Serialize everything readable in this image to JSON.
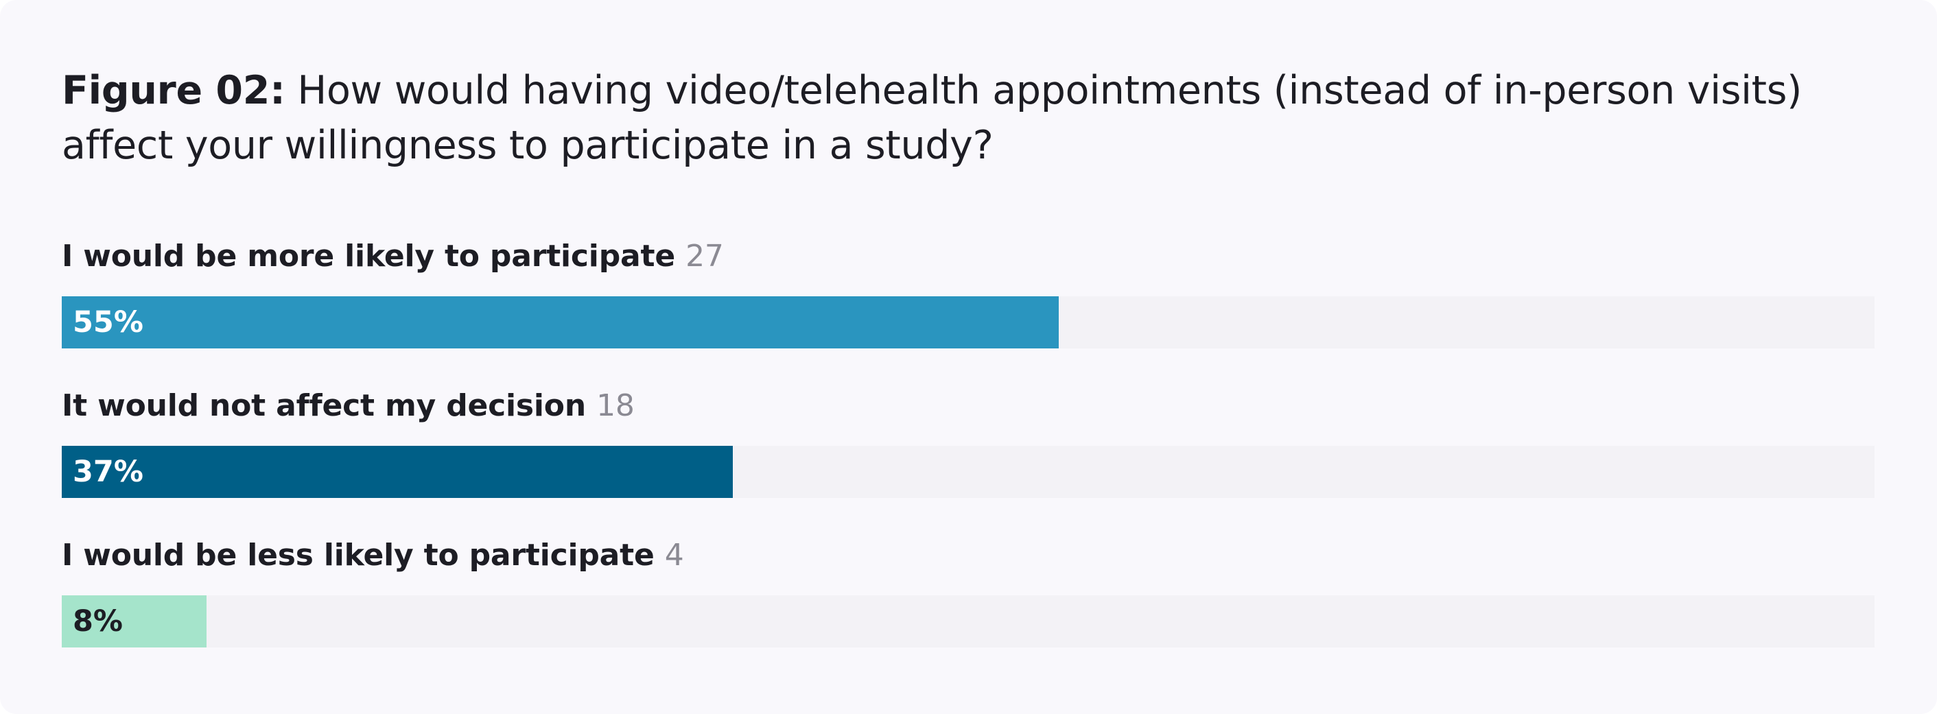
{
  "figure": {
    "label": "Figure 02:",
    "question": "How would having video/telehealth appointments (instead of in-person visits) affect your willingness to participate in a study?"
  },
  "chart_data": {
    "type": "bar",
    "orientation": "horizontal",
    "title": "Figure 02: How would having video/telehealth appointments (instead of in-person visits) affect your willingness to participate in a study?",
    "categories": [
      "I would be more likely to participate",
      "It would not affect my decision",
      "I would be less likely to participate"
    ],
    "counts": [
      27,
      18,
      4
    ],
    "values": [
      55,
      37,
      8
    ],
    "value_labels": [
      "55%",
      "37%",
      "8%"
    ],
    "colors": [
      "#2a95bf",
      "#005f87",
      "#a5e4cb"
    ],
    "label_colors": [
      "#ffffff",
      "#ffffff",
      "#1d1d24"
    ],
    "track_color": "#f3f2f6",
    "xlim": [
      0,
      100
    ],
    "grid": false,
    "legend": "none"
  }
}
